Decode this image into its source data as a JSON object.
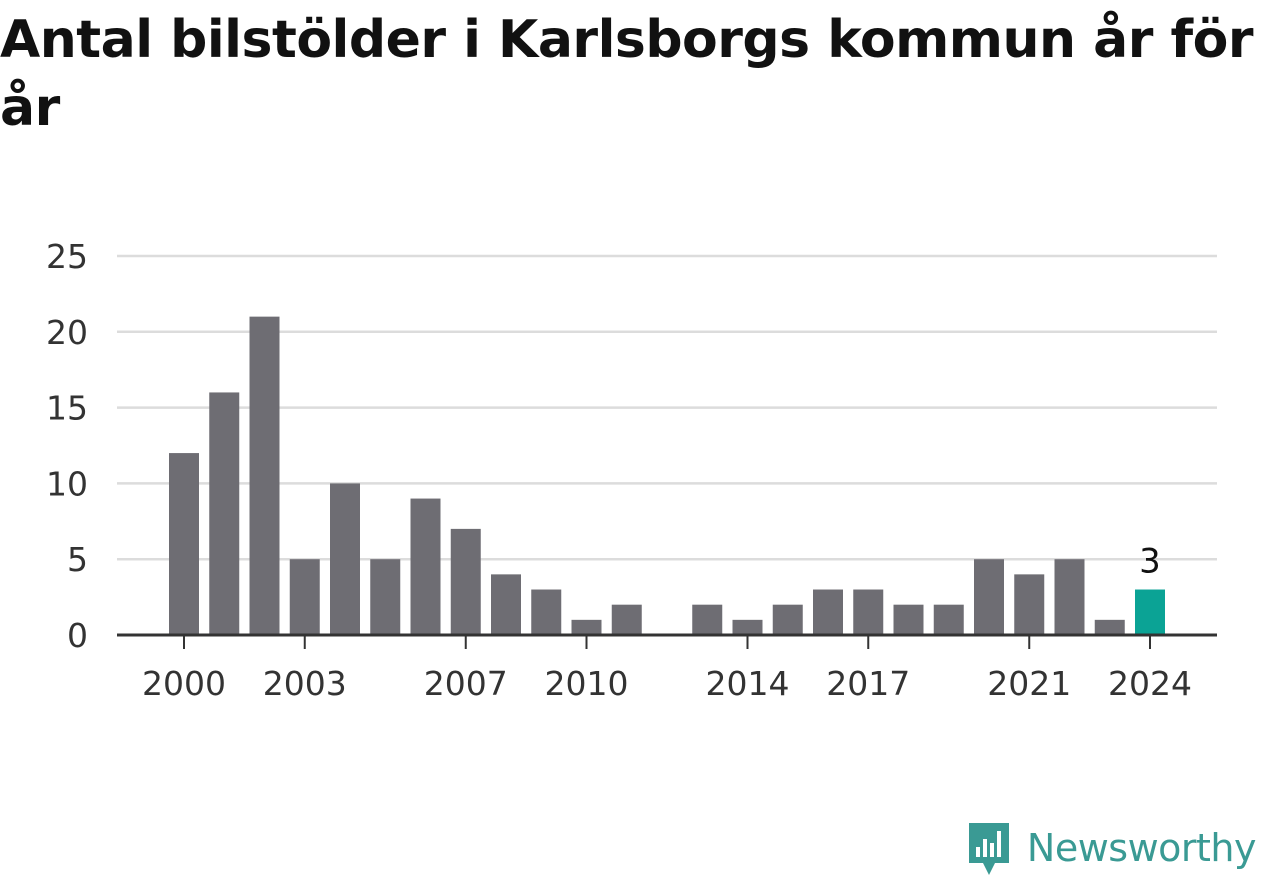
{
  "chart_data": {
    "type": "bar",
    "title": "Antal bilstölder i Karlsborgs kommun år för år",
    "xlabel": "",
    "ylabel": "",
    "categories": [
      2000,
      2001,
      2002,
      2003,
      2004,
      2005,
      2006,
      2007,
      2008,
      2009,
      2010,
      2011,
      2012,
      2013,
      2014,
      2015,
      2016,
      2017,
      2018,
      2019,
      2020,
      2021,
      2022,
      2023,
      2024
    ],
    "values": [
      12,
      16,
      21,
      5,
      10,
      5,
      9,
      7,
      4,
      3,
      1,
      2,
      0,
      2,
      1,
      2,
      3,
      3,
      2,
      2,
      5,
      4,
      5,
      1,
      3
    ],
    "ylim": [
      0,
      25
    ],
    "yticks": [
      0,
      5,
      10,
      15,
      20,
      25
    ],
    "xtick_labels": [
      2000,
      2003,
      2007,
      2010,
      2014,
      2017,
      2021,
      2024
    ],
    "highlight": {
      "category": 2024,
      "label": "3"
    },
    "grid": true,
    "colors": {
      "bar": "#6e6d73",
      "highlight": "#0ba395",
      "grid": "#dcdcdc",
      "axis": "#333333",
      "tick_text": "#333333"
    }
  },
  "brand": {
    "name": "Newsworthy",
    "icon": "newsworthy-logo-icon",
    "color": "#3a9a94"
  }
}
